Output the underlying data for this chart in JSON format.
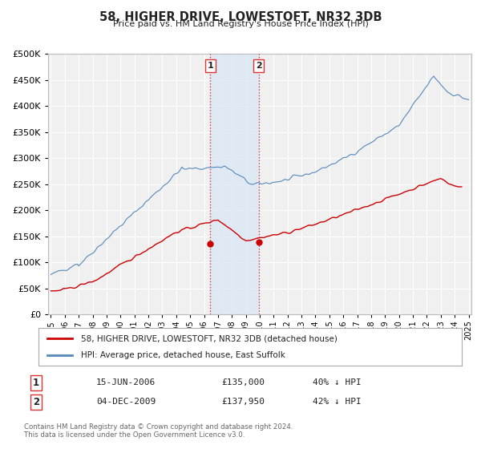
{
  "title": "58, HIGHER DRIVE, LOWESTOFT, NR32 3DB",
  "subtitle": "Price paid vs. HM Land Registry's House Price Index (HPI)",
  "title_color": "#222222",
  "bg_color": "#ffffff",
  "plot_bg_color": "#f0f0f0",
  "grid_color": "#ffffff",
  "legend_label_red": "58, HIGHER DRIVE, LOWESTOFT, NR32 3DB (detached house)",
  "legend_label_blue": "HPI: Average price, detached house, East Suffolk",
  "footnote": "Contains HM Land Registry data © Crown copyright and database right 2024.\nThis data is licensed under the Open Government Licence v3.0.",
  "purchase1": {
    "date": "15-JUN-2006",
    "price": 135000,
    "pct": "40%",
    "dir": "↓",
    "label": "1"
  },
  "purchase2": {
    "date": "04-DEC-2009",
    "price": 137950,
    "pct": "42%",
    "dir": "↓",
    "label": "2"
  },
  "vline1_x": 2006.45,
  "vline2_x": 2009.92,
  "marker1_red_x": 2006.45,
  "marker1_red_y": 135000,
  "marker2_red_x": 2009.92,
  "marker2_red_y": 137950,
  "ylim": [
    0,
    500000
  ],
  "xlim_start": 1995,
  "xlim_end": 2025,
  "red_color": "#cc0000",
  "blue_color": "#5588bb",
  "vline_color": "#dd3333",
  "shade_color": "#dde8f5",
  "marker_color": "#cc0000"
}
